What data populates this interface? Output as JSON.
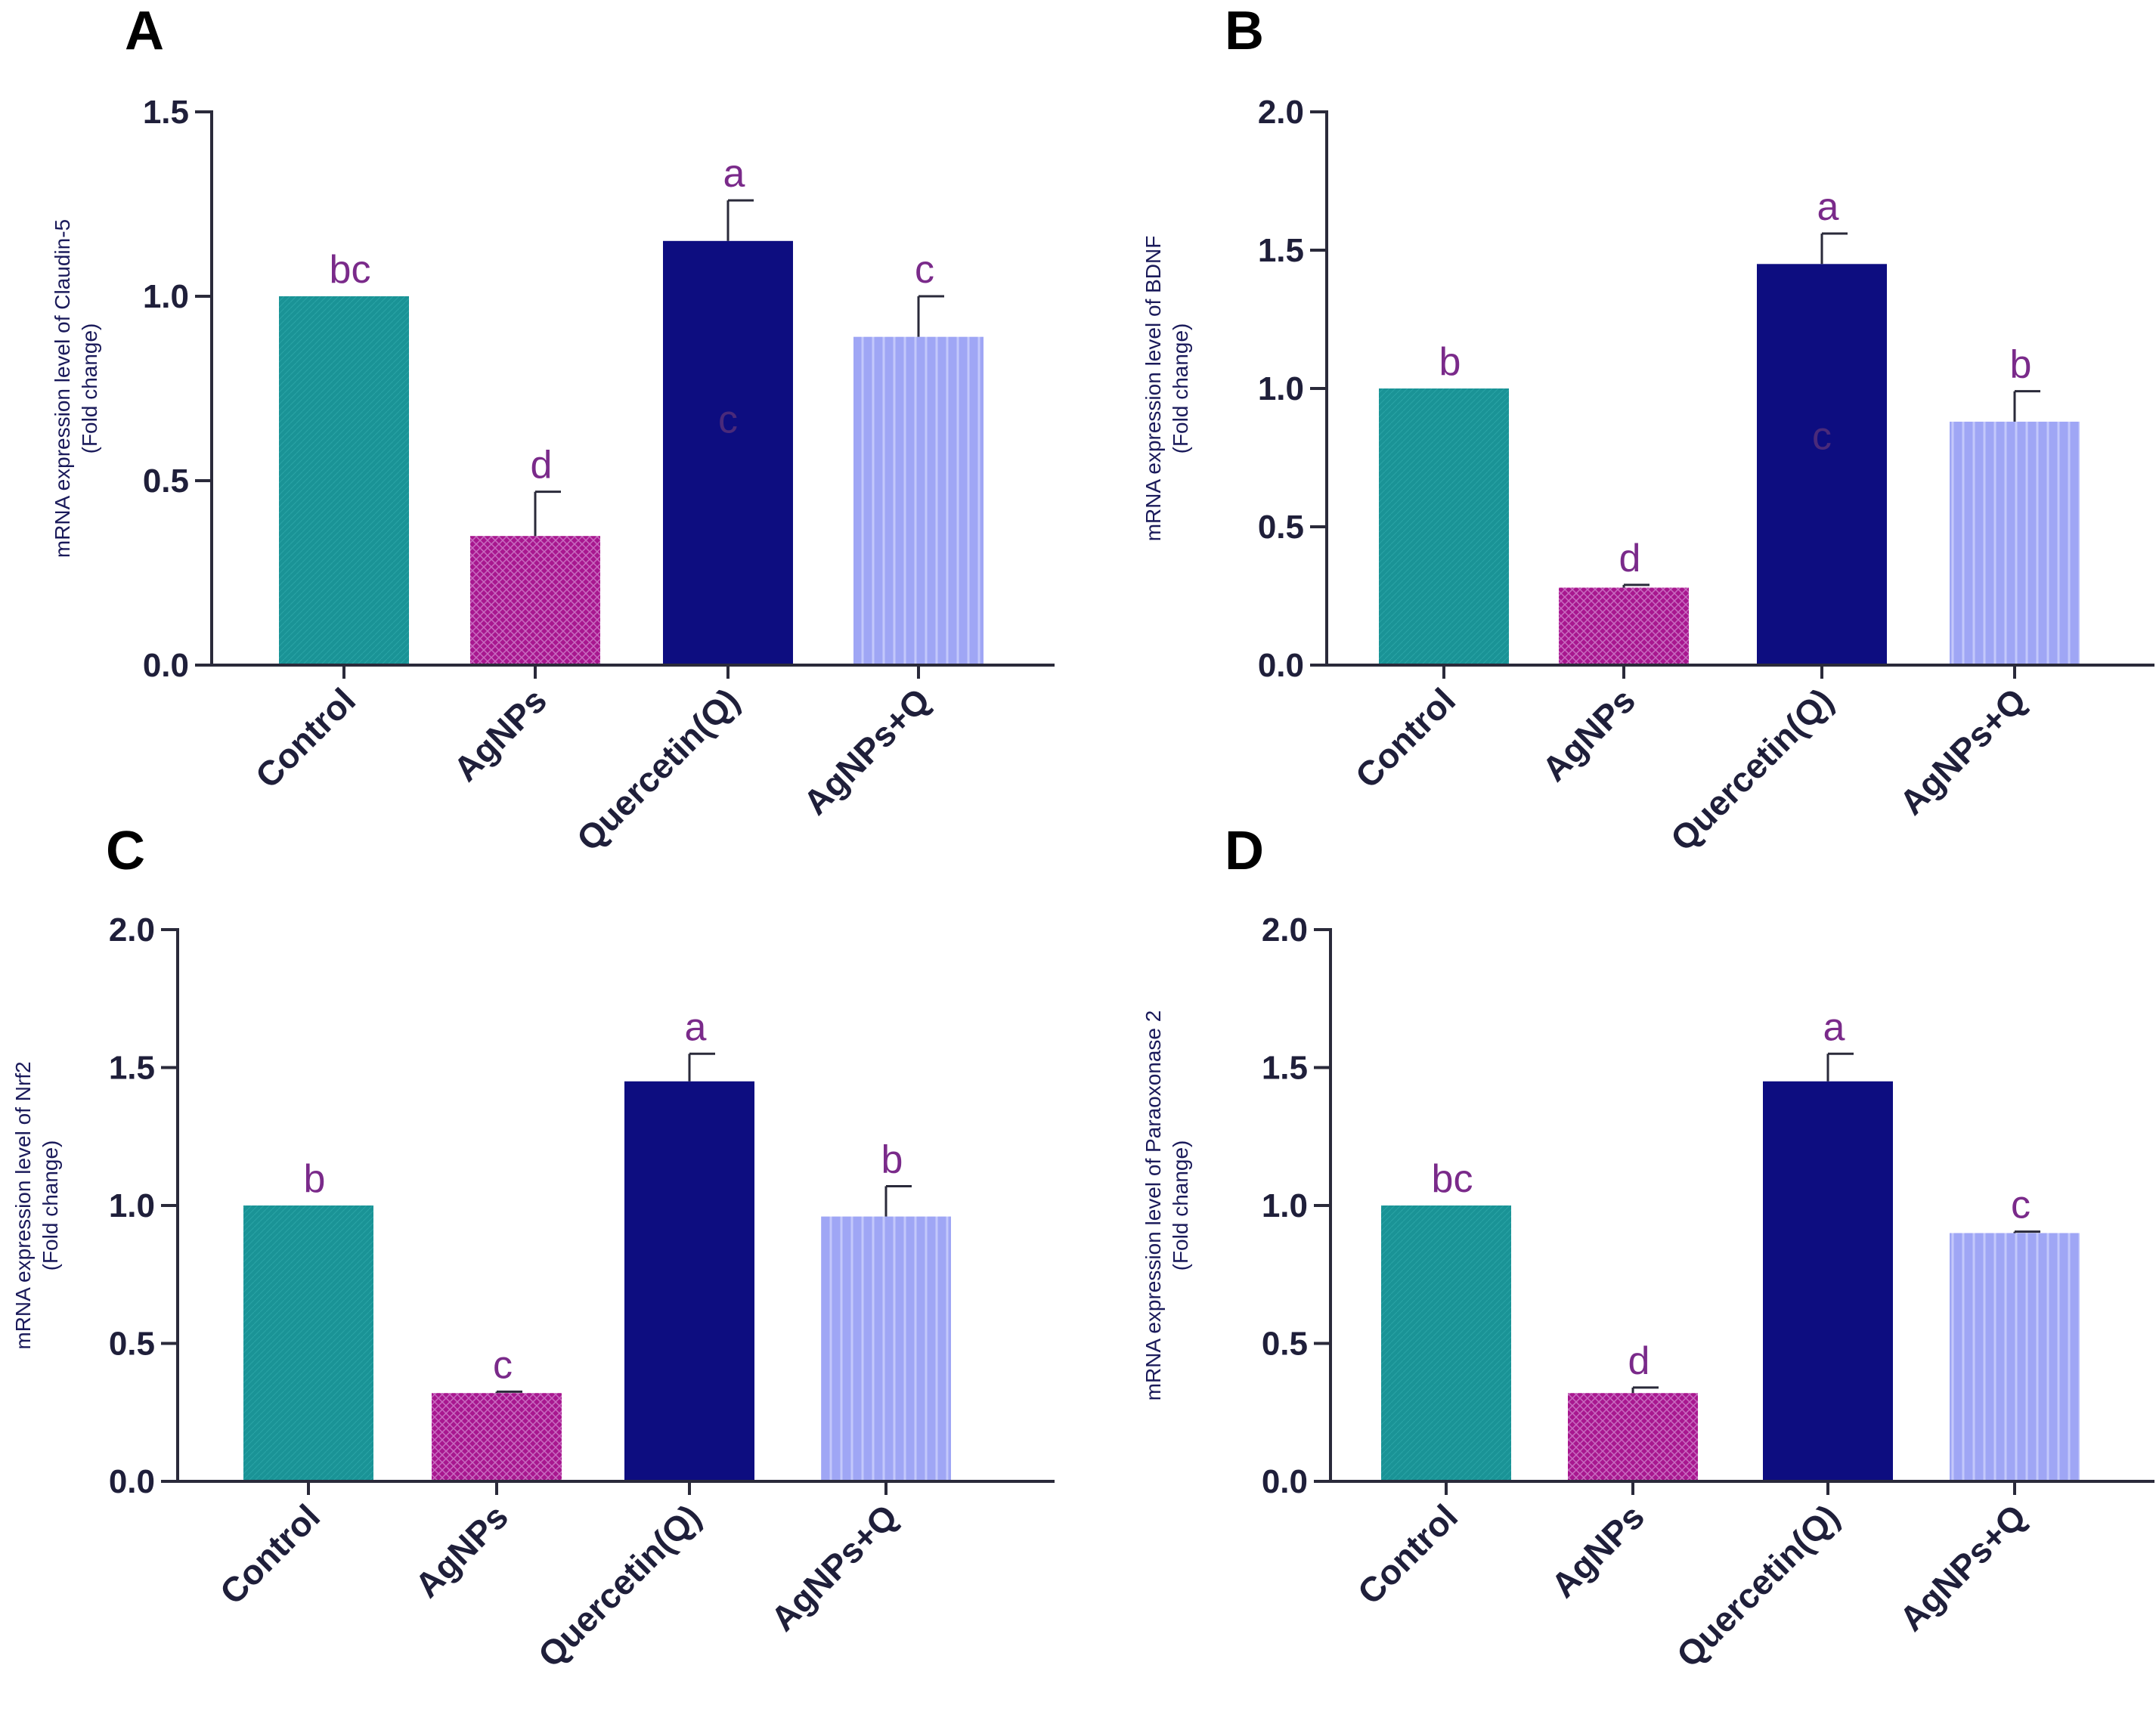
{
  "chart_data": [
    {
      "type": "bar",
      "panel": "A",
      "ylabel_line1": "mRNA expression level of Claudin-5",
      "ylabel_line2": "(Fold change)",
      "categories": [
        "Control",
        "AgNPs",
        "Quercetin(Q)",
        "AgNPs+Q"
      ],
      "values": [
        1.0,
        0.35,
        1.15,
        0.89
      ],
      "errors": [
        0.0,
        0.12,
        0.11,
        0.11
      ],
      "letters": [
        "bc",
        "d",
        "a",
        "c"
      ],
      "inner_letter": "c",
      "ylim": [
        0,
        1.5
      ],
      "yticks": [
        "0.0",
        "0.5",
        "1.0",
        "1.5"
      ]
    },
    {
      "type": "bar",
      "panel": "B",
      "ylabel_line1": "mRNA expression level of BDNF",
      "ylabel_line2": "(Fold change)",
      "categories": [
        "Control",
        "AgNPs",
        "Quercetin(Q)",
        "AgNPs+Q"
      ],
      "values": [
        1.0,
        0.28,
        1.45,
        0.88
      ],
      "errors": [
        0.0,
        0.01,
        0.11,
        0.11
      ],
      "letters": [
        "b",
        "d",
        "a",
        "b"
      ],
      "inner_letter": "c",
      "ylim": [
        0,
        2.0
      ],
      "yticks": [
        "0.0",
        "0.5",
        "1.0",
        "1.5",
        "2.0"
      ]
    },
    {
      "type": "bar",
      "panel": "C",
      "ylabel_line1": "mRNA expression level of Nrf2",
      "ylabel_line2": "(Fold change)",
      "categories": [
        "Control",
        "AgNPs",
        "Quercetin(Q)",
        "AgNPs+Q"
      ],
      "values": [
        1.0,
        0.32,
        1.45,
        0.96
      ],
      "errors": [
        0.0,
        0.005,
        0.1,
        0.11
      ],
      "letters": [
        "b",
        "c",
        "a",
        "b"
      ],
      "inner_letter": "",
      "ylim": [
        0,
        2.0
      ],
      "yticks": [
        "0.0",
        "0.5",
        "1.0",
        "1.5",
        "2.0"
      ]
    },
    {
      "type": "bar",
      "panel": "D",
      "ylabel_line1": "mRNA expression level of Paraoxonase 2",
      "ylabel_line2": "(Fold change)",
      "categories": [
        "Control",
        "AgNPs",
        "Quercetin(Q)",
        "AgNPs+Q"
      ],
      "values": [
        1.0,
        0.32,
        1.45,
        0.9
      ],
      "errors": [
        0.0,
        0.02,
        0.1,
        0.005
      ],
      "letters": [
        "bc",
        "d",
        "a",
        "c"
      ],
      "inner_letter": "",
      "ylim": [
        0,
        2.0
      ],
      "yticks": [
        "0.0",
        "0.5",
        "1.0",
        "1.5",
        "2.0"
      ]
    }
  ],
  "colors": [
    "#1a9396",
    "#a8178f",
    "#0d0d80",
    "#9fa6f5"
  ]
}
